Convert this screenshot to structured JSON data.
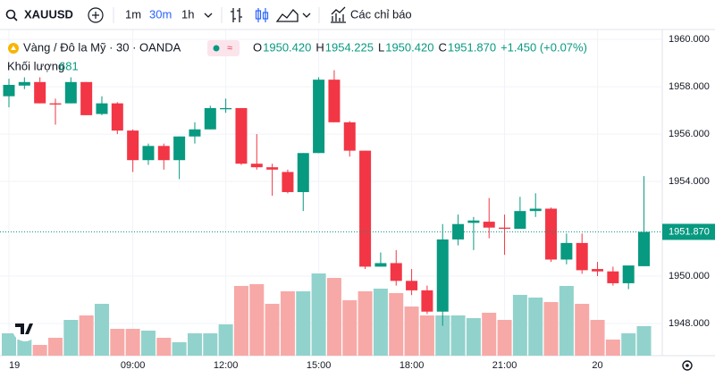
{
  "toolbar": {
    "symbol": "XAUUSD",
    "intervals": [
      "1m",
      "30m",
      "1h"
    ],
    "indicators": "Các chỉ báo"
  },
  "legend": {
    "title": "Vàng / Đô la Mỹ · 30 · OANDA",
    "ohlc": [
      {
        "key": "O",
        "text": "1950.420"
      },
      {
        "key": "H",
        "text": "1954.225"
      },
      {
        "key": "L",
        "text": "1950.420"
      },
      {
        "key": "C",
        "text": "1951.870"
      }
    ],
    "change": "+1.450 (+0.07%)",
    "volume_name": "Khối lượng",
    "volume_last": "681"
  },
  "chart_data": {
    "type": "candlestick",
    "categories": [
      "19",
      null,
      null,
      null,
      null,
      null,
      null,
      null,
      "09:00",
      null,
      null,
      null,
      null,
      null,
      "12:00",
      null,
      null,
      null,
      null,
      null,
      "15:00",
      null,
      null,
      null,
      null,
      null,
      "18:00",
      null,
      null,
      null,
      null,
      null,
      "21:00",
      null,
      null,
      null,
      null,
      null,
      "20",
      null,
      null,
      null
    ],
    "open": [
      1957.6,
      1958.05,
      1958.2,
      1957.3,
      1957.3,
      1958.2,
      1956.85,
      1957.3,
      1956.15,
      1954.9,
      1955.5,
      1954.9,
      1955.9,
      1956.2,
      1957.05,
      1957.1,
      1954.75,
      1954.6,
      1954.4,
      1953.55,
      1955.2,
      1958.3,
      1956.5,
      1955.3,
      1950.4,
      1950.55,
      1949.8,
      1949.4,
      1948.5,
      1951.55,
      1952.25,
      1952.3,
      1952.05,
      1952.0,
      1952.75,
      1952.85,
      1950.7,
      1951.4,
      1950.3,
      1950.2,
      1949.7,
      1950.42
    ],
    "high": [
      1958.34,
      1958.4,
      1958.4,
      1957.5,
      1958.4,
      1958.2,
      1957.6,
      1957.35,
      1956.2,
      1955.6,
      1955.6,
      1955.9,
      1956.5,
      1957.2,
      1957.5,
      1957.1,
      1956.0,
      1954.75,
      1954.5,
      1955.2,
      1958.4,
      1958.7,
      1956.55,
      1955.3,
      1951.0,
      1951.1,
      1950.3,
      1949.6,
      1952.2,
      1952.6,
      1952.5,
      1953.3,
      1952.6,
      1953.35,
      1953.5,
      1952.9,
      1951.8,
      1951.8,
      1950.6,
      1950.4,
      1950.45,
      1954.225
    ],
    "low": [
      1957.13,
      1957.9,
      1957.3,
      1956.4,
      1957.3,
      1956.8,
      1956.8,
      1956.0,
      1954.4,
      1954.7,
      1954.5,
      1954.1,
      1955.6,
      1956.2,
      1956.9,
      1954.7,
      1954.5,
      1953.4,
      1953.5,
      1952.75,
      1955.2,
      1956.5,
      1955.05,
      1950.3,
      1950.4,
      1949.6,
      1949.2,
      1948.4,
      1947.9,
      1951.3,
      1951.1,
      1951.6,
      1950.9,
      1952.0,
      1952.5,
      1950.6,
      1950.5,
      1950.1,
      1950.0,
      1949.6,
      1949.45,
      1950.42
    ],
    "close": [
      1958.08,
      1958.2,
      1957.3,
      1957.25,
      1958.2,
      1956.8,
      1957.3,
      1956.15,
      1954.9,
      1955.5,
      1954.9,
      1955.9,
      1956.2,
      1957.1,
      1957.1,
      1954.75,
      1954.6,
      1954.5,
      1953.55,
      1955.2,
      1958.3,
      1956.5,
      1955.3,
      1950.4,
      1950.55,
      1949.8,
      1949.4,
      1948.5,
      1951.55,
      1952.2,
      1952.35,
      1952.05,
      1952.0,
      1952.75,
      1952.85,
      1950.7,
      1951.4,
      1950.25,
      1950.2,
      1949.7,
      1950.45,
      1951.87
    ],
    "volume": [
      515,
      371,
      247,
      412,
      824,
      927,
      1195,
      618,
      618,
      577,
      412,
      309,
      515,
      515,
      721,
      1607,
      1648,
      1195,
      1483,
      1483,
      1895,
      1792,
      1277,
      1483,
      1545,
      1442,
      1133,
      927,
      927,
      927,
      865,
      989,
      824,
      1401,
      1339,
      1236,
      1607,
      1195,
      824,
      371,
      515,
      681
    ],
    "up_color": "#089981",
    "down_color": "#f23645",
    "up_volume_color": "#92d2cc",
    "down_volume_color": "#f7a9a7",
    "ylim": [
      1946.64,
      1960.42
    ],
    "yticks": [
      {
        "value": 1948,
        "label": "1948.000"
      },
      {
        "value": 1950,
        "label": "1950.000"
      },
      {
        "value": 1954,
        "label": "1954.000"
      },
      {
        "value": 1956,
        "label": "1956.000"
      },
      {
        "value": 1958,
        "label": "1958.000"
      },
      {
        "value": 1960,
        "label": "1960.000"
      }
    ],
    "last_price": {
      "value": 1951.87,
      "label": "1951.870"
    },
    "grid": true
  }
}
